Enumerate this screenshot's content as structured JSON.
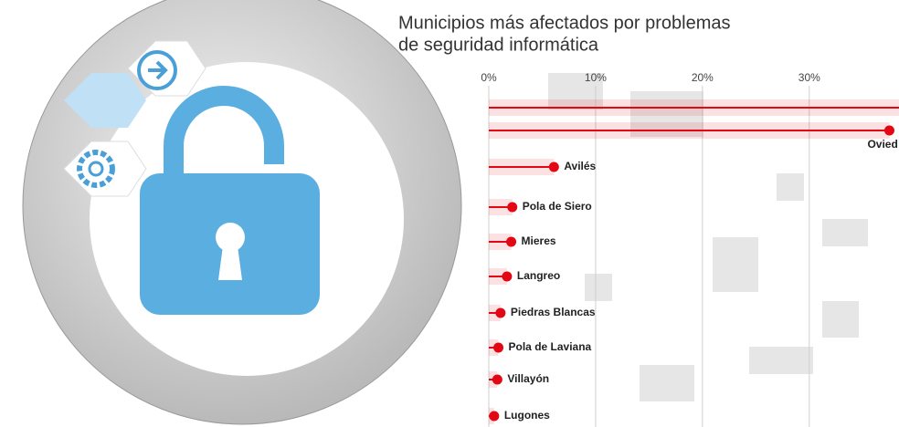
{
  "chart_data": {
    "type": "lollipop",
    "title": [
      "Municipios más afectados por problemas",
      "de seguridad informática"
    ],
    "categories": [
      null,
      "Ovied",
      "Avilés",
      "Pola de Siero",
      "Mieres",
      "Langreo",
      "Piedras Blancas",
      "Pola de Laviana",
      "Villayón",
      "Lugones"
    ],
    "values": [
      42,
      37.5,
      6.1,
      2.2,
      2.1,
      1.7,
      1.1,
      0.9,
      0.8,
      0.5
    ],
    "color": "#e30613",
    "xlim": [
      0,
      38.4
    ],
    "xticks": [
      {
        "value": 0,
        "label": "0%"
      },
      {
        "value": 10,
        "label": "10%"
      },
      {
        "value": 20,
        "label": "20%"
      },
      {
        "value": 30,
        "label": "30%"
      }
    ],
    "grid": true
  }
}
